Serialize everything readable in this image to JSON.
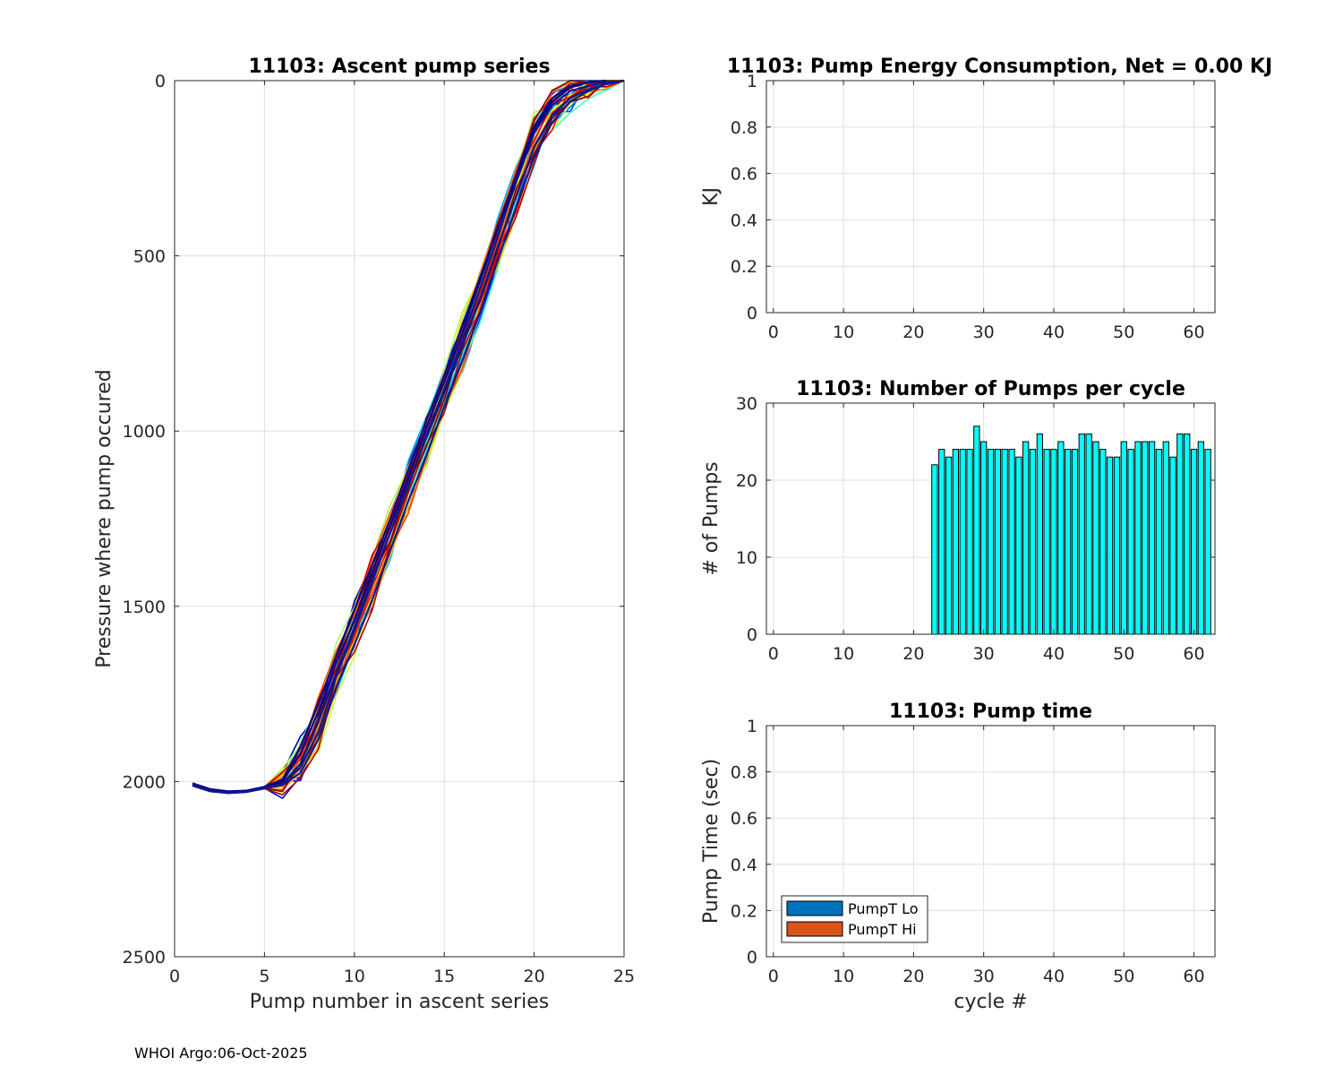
{
  "footer": "WHOI Argo:06-Oct-2025",
  "chart_data": [
    {
      "id": "ascent",
      "type": "line",
      "title": "11103: Ascent pump series",
      "xlabel": "Pump number in ascent series",
      "ylabel": "Pressure where pump occured",
      "xlim": [
        0,
        25
      ],
      "ylim": [
        0,
        2500
      ],
      "y_reversed": true,
      "xticks": [
        0,
        5,
        10,
        15,
        20,
        25
      ],
      "yticks": [
        0,
        500,
        1000,
        1500,
        2000,
        2500
      ],
      "grid": true,
      "series_count_estimate": 40,
      "colormap": "jet",
      "representative_series": [
        {
          "x": [
            1,
            2,
            3,
            4,
            5,
            6,
            7,
            8,
            9,
            10,
            11,
            12,
            13,
            14,
            15,
            16,
            17,
            18,
            19,
            20,
            21,
            22,
            23,
            24,
            25
          ],
          "y": [
            2010,
            2025,
            2030,
            2028,
            2018,
            2005,
            1960,
            1860,
            1700,
            1570,
            1430,
            1290,
            1160,
            1010,
            880,
            740,
            590,
            440,
            290,
            150,
            70,
            30,
            15,
            5,
            0
          ]
        },
        {
          "x": [
            1,
            2,
            3,
            4,
            5,
            6,
            7,
            8,
            9,
            10,
            11,
            12,
            13,
            14,
            15,
            16,
            17,
            18,
            19,
            20,
            21,
            22,
            23,
            24
          ],
          "y": [
            2005,
            2022,
            2028,
            2026,
            2015,
            1995,
            1900,
            1780,
            1640,
            1510,
            1380,
            1250,
            1110,
            970,
            840,
            700,
            560,
            420,
            270,
            130,
            50,
            15,
            5,
            0
          ]
        },
        {
          "x": [
            1,
            2,
            3,
            4,
            5,
            6,
            7,
            8,
            9,
            10,
            11,
            12,
            13,
            14,
            15,
            16,
            17,
            18,
            19,
            20,
            21,
            22,
            23,
            24,
            25
          ],
          "y": [
            2012,
            2028,
            2033,
            2030,
            2020,
            2010,
            1975,
            1880,
            1730,
            1610,
            1480,
            1340,
            1200,
            1070,
            930,
            800,
            660,
            510,
            360,
            220,
            120,
            60,
            30,
            10,
            0
          ]
        },
        {
          "x": [
            1,
            2,
            3,
            4,
            5,
            6,
            7,
            8,
            9,
            10,
            11,
            12,
            13,
            14,
            15,
            16,
            17,
            18,
            19,
            20,
            21,
            22,
            23,
            24
          ],
          "y": [
            2008,
            2024,
            2030,
            2027,
            2016,
            2000,
            1920,
            1800,
            1660,
            1540,
            1400,
            1270,
            1130,
            990,
            860,
            720,
            570,
            420,
            280,
            140,
            60,
            20,
            5,
            0
          ]
        },
        {
          "x": [
            1,
            2,
            3,
            4,
            5,
            6,
            7,
            8,
            9,
            10,
            11,
            12,
            13,
            14,
            15,
            16,
            17,
            18,
            19,
            20,
            21,
            22,
            23,
            24,
            25
          ],
          "y": [
            2010,
            2026,
            2031,
            2029,
            2019,
            2006,
            1950,
            1830,
            1690,
            1560,
            1420,
            1290,
            1150,
            1020,
            890,
            760,
            620,
            470,
            330,
            190,
            100,
            50,
            25,
            10,
            0
          ]
        }
      ]
    },
    {
      "id": "energy",
      "type": "bar",
      "title": "11103: Pump Energy Consumption,  Net =   0.00 KJ",
      "xlabel": "",
      "ylabel": "KJ",
      "xlim": [
        -1,
        63
      ],
      "ylim": [
        0,
        1
      ],
      "xticks": [
        0,
        10,
        20,
        30,
        40,
        50,
        60
      ],
      "yticks": [
        0,
        0.2,
        0.4,
        0.6,
        0.8,
        1
      ],
      "ytick_labels": [
        "0",
        "0.2",
        "0.4",
        "0.6",
        "0.8",
        "1"
      ],
      "grid": true,
      "values": []
    },
    {
      "id": "pumps",
      "type": "bar",
      "title": "11103: Number of Pumps per cycle",
      "xlabel": "",
      "ylabel": "# of Pumps",
      "xlim": [
        -1,
        63
      ],
      "ylim": [
        0,
        30
      ],
      "xticks": [
        0,
        10,
        20,
        30,
        40,
        50,
        60
      ],
      "yticks": [
        0,
        10,
        20,
        30
      ],
      "grid": true,
      "bar_color": "#00ffff",
      "x": [
        23,
        24,
        25,
        26,
        27,
        28,
        29,
        30,
        31,
        32,
        33,
        34,
        35,
        36,
        37,
        38,
        39,
        40,
        41,
        42,
        43,
        44,
        45,
        46,
        47,
        48,
        49,
        50,
        51,
        52,
        53,
        54,
        55,
        56,
        57,
        58,
        59,
        60,
        61,
        62
      ],
      "values": [
        22,
        24,
        23,
        24,
        24,
        24,
        27,
        25,
        24,
        24,
        24,
        24,
        23,
        25,
        24,
        26,
        24,
        24,
        25,
        24,
        24,
        26,
        26,
        25,
        24,
        23,
        23,
        25,
        24,
        25,
        25,
        25,
        24,
        25,
        23,
        26,
        26,
        24,
        25,
        24
      ]
    },
    {
      "id": "pumptime",
      "type": "bar",
      "title": "11103: Pump time",
      "xlabel": "cycle #",
      "ylabel": "Pump Time (sec)",
      "xlim": [
        -1,
        63
      ],
      "ylim": [
        0,
        1
      ],
      "xticks": [
        0,
        10,
        20,
        30,
        40,
        50,
        60
      ],
      "yticks": [
        0,
        0.2,
        0.4,
        0.6,
        0.8,
        1
      ],
      "ytick_labels": [
        "0",
        "0.2",
        "0.4",
        "0.6",
        "0.8",
        "1"
      ],
      "grid": true,
      "legend": {
        "position": "bottom-left",
        "entries": [
          {
            "label": "PumpT Lo",
            "color": "#0072bd"
          },
          {
            "label": "PumpT Hi",
            "color": "#d95319"
          }
        ]
      },
      "values": []
    }
  ]
}
